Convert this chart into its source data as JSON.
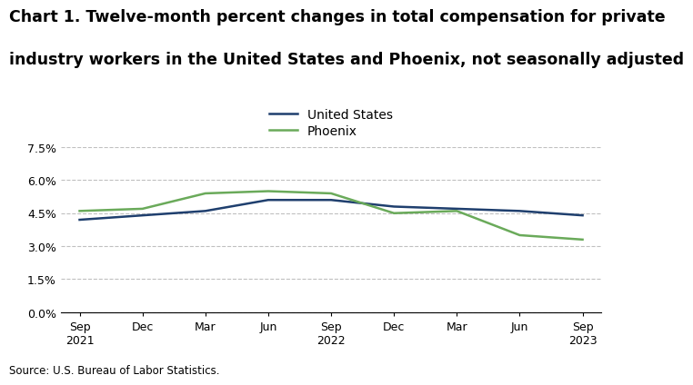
{
  "title_line1": "Chart 1. Twelve-month percent changes in total compensation for private",
  "title_line2": "industry workers in the United States and Phoenix, not seasonally adjusted",
  "source": "Source: U.S. Bureau of Labor Statistics.",
  "x_labels": [
    "Sep\n2021",
    "Dec",
    "Mar",
    "Jun",
    "Sep\n2022",
    "Dec",
    "Mar",
    "Jun",
    "Sep\n2023"
  ],
  "us_values": [
    4.2,
    4.4,
    4.6,
    5.1,
    5.1,
    4.8,
    4.7,
    4.6,
    4.4
  ],
  "phoenix_values": [
    4.6,
    4.7,
    5.4,
    5.5,
    5.4,
    4.5,
    4.6,
    3.5,
    3.3
  ],
  "us_color": "#1f3f6e",
  "phoenix_color": "#6aaa5a",
  "us_label": "United States",
  "phoenix_label": "Phoenix",
  "ylim": [
    0.0,
    7.5
  ],
  "yticks": [
    0.0,
    1.5,
    3.0,
    4.5,
    6.0,
    7.5
  ],
  "grid_color": "#c0c0c0",
  "background_color": "#ffffff",
  "title_fontsize": 12.5,
  "legend_fontsize": 10,
  "tick_fontsize": 9,
  "source_fontsize": 8.5,
  "line_width": 1.8
}
